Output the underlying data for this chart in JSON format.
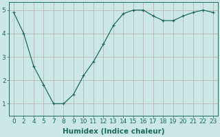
{
  "x_labels": [
    "0",
    "2",
    "4",
    "5",
    "7",
    "8",
    "9",
    "10",
    "11",
    "12",
    "13",
    "14",
    "15",
    "16",
    "17",
    "18",
    "19",
    "20",
    "21",
    "22",
    "23"
  ],
  "y": [
    4.9,
    4.0,
    2.6,
    1.8,
    1.0,
    1.0,
    1.4,
    2.2,
    2.8,
    3.55,
    4.35,
    4.85,
    5.0,
    5.0,
    4.75,
    4.55,
    4.55,
    4.75,
    4.9,
    5.0,
    4.9
  ],
  "line_color": "#1a6b5a",
  "bg_color": "#cce8e4",
  "grid_color": "#b8a8b0",
  "xlabel": "Humidex (Indice chaleur)",
  "ylim": [
    0.5,
    5.35
  ],
  "yticks": [
    1,
    2,
    3,
    4,
    5
  ],
  "label_fontsize": 7.5,
  "tick_fontsize": 6.5
}
